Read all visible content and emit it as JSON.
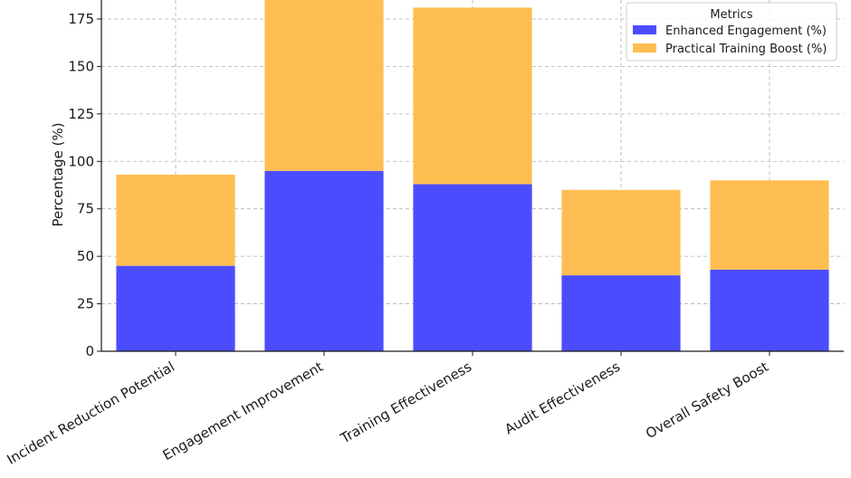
{
  "chart_data": {
    "type": "bar",
    "stacked": true,
    "title": "",
    "xlabel": "",
    "ylabel": "Percentage (%)",
    "ylim": [
      0,
      185
    ],
    "yticks": [
      0,
      25,
      50,
      75,
      100,
      125,
      150,
      175
    ],
    "grid": true,
    "legend_position": "top-right",
    "legend_title": "Metrics",
    "categories": [
      "Incident Reduction Potential",
      "Engagement Improvement",
      "Training Effectiveness",
      "Audit Effectiveness",
      "Overall Safety Boost"
    ],
    "series": [
      {
        "name": "Enhanced Engagement (%)",
        "color": "#4c4cff",
        "values": [
          45,
          95,
          88,
          40,
          43
        ]
      },
      {
        "name": "Practical Training Boost (%)",
        "color": "#ffbe52",
        "values": [
          48,
          90,
          93,
          45,
          47
        ]
      }
    ]
  }
}
